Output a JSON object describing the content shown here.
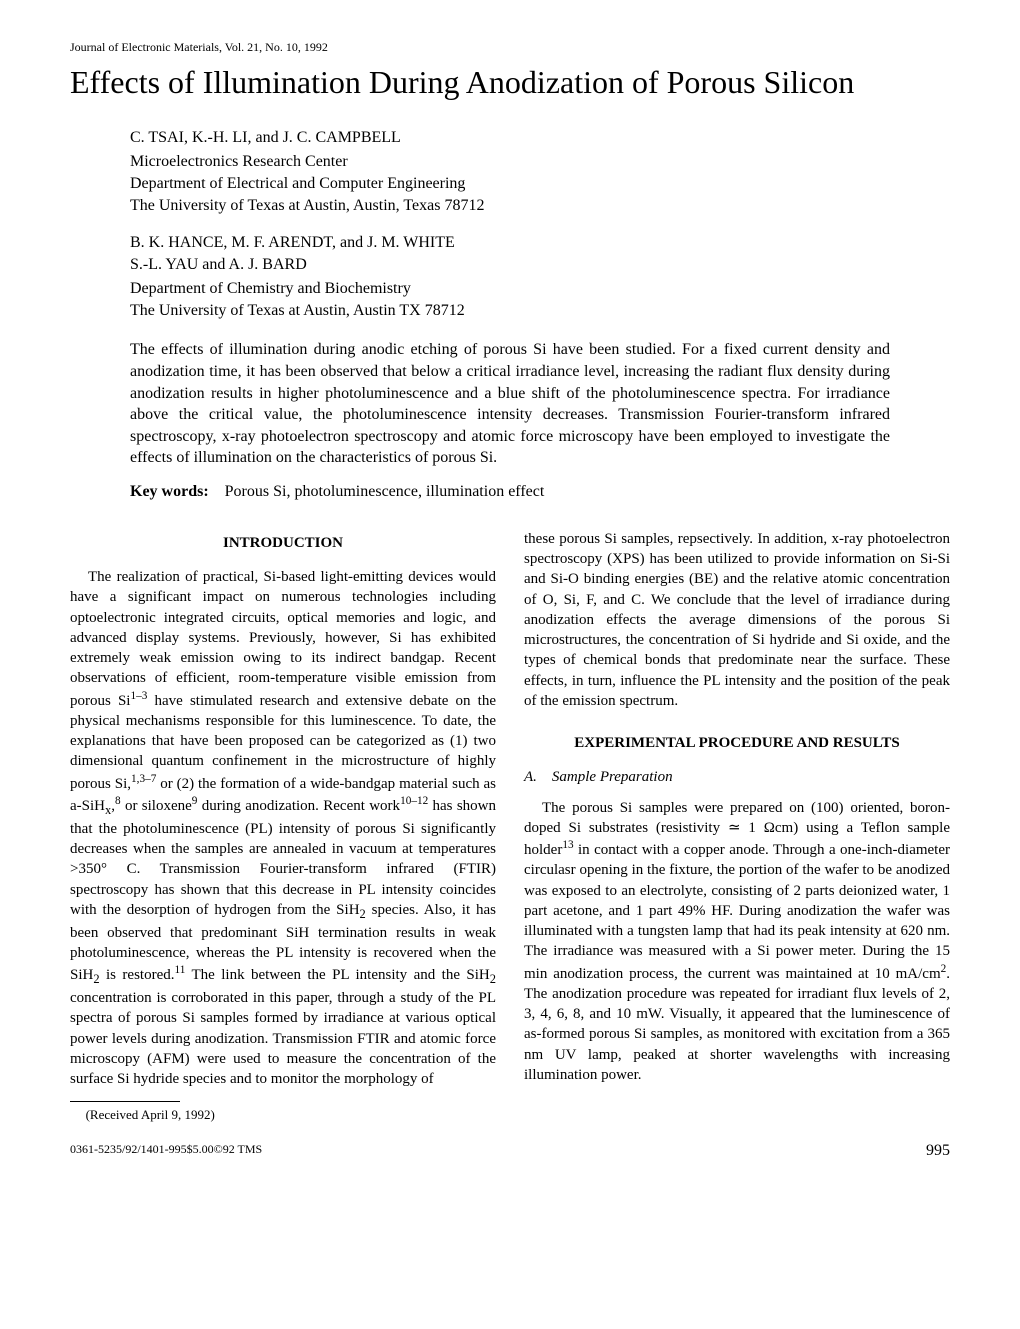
{
  "journal_header": "Journal of Electronic Materials, Vol. 21, No. 10, 1992",
  "title": "Effects of Illumination During Anodization of Porous Silicon",
  "author_group_1": {
    "authors": "C. TSAI, K.-H. LI, and J. C. CAMPBELL",
    "affiliation": "Microelectronics Research Center\nDepartment of Electrical and Computer Engineering\nThe University of Texas at Austin, Austin, Texas 78712"
  },
  "author_group_2": {
    "authors_line1": "B. K. HANCE, M. F. ARENDT, and J. M. WHITE",
    "authors_line2": "S.-L. YAU and A. J. BARD",
    "affiliation": "Department of Chemistry and Biochemistry\nThe University of Texas at Austin, Austin TX 78712"
  },
  "abstract": "The effects of illumination during anodic etching of porous Si have been studied. For a fixed current density and anodization time, it has been observed that below a critical irradiance level, increasing the radiant flux density during anodization results in higher photoluminescence and a blue shift of the photoluminescence spectra. For irradiance above the critical value, the photoluminescence intensity decreases. Transmission Fourier-transform infrared spectroscopy, x-ray photoelectron spectroscopy and atomic force microscopy have been employed to investigate the effects of illumination on the characteristics of porous Si.",
  "keywords_label": "Key words:",
  "keywords": "Porous Si, photoluminescence, illumination effect",
  "sections": {
    "introduction": {
      "heading": "INTRODUCTION",
      "para1_html": "The realization of practical, Si-based light-emitting devices would have a significant impact on numerous technologies including optoelectronic integrated circuits, optical memories and logic, and advanced display systems. Previously, however, Si has exhibited extremely weak emission owing to its indirect bandgap. Recent observations of efficient, room-temperature visible emission from porous Si<sup>1–3</sup> have stimulated research and extensive debate on the physical mechanisms responsible for this luminescence. To date, the explanations that have been proposed can be categorized as (1) two dimensional quantum confinement in the microstructure of highly porous Si,<sup>1,3–7</sup> or (2) the formation of a wide-bandgap material such as a-SiH<sub>x</sub>,<sup>8</sup> or siloxene<sup>9</sup> during anodization. Recent work<sup>10–12</sup> has shown that the photoluminescence (PL) intensity of porous Si significantly decreases when the samples are annealed in vacuum at temperatures >350° C. Transmission Fourier-transform infrared (FTIR) spectroscopy has shown that this decrease in PL intensity coincides with the desorption of hydrogen from the SiH<sub>2</sub> species. Also, it has been observed that predominant SiH termination results in weak photoluminescence, whereas the PL intensity is recovered when the SiH<sub>2</sub> is restored.<sup>11</sup> The link between the PL intensity and the SiH<sub>2</sub> concentration is corroborated in this paper, through a study of the PL spectra of porous Si samples formed by irradiance at various optical power levels during anodization. Transmission FTIR and atomic force microscopy (AFM) were used to measure the concentration of the surface Si hydride species and to monitor the morphology of",
      "para1_cont": "these porous Si samples, repsectively. In addition, x-ray photoelectron spectroscopy (XPS) has been utilized to provide information on Si-Si and Si-O binding energies (BE) and the relative atomic concentration of O, Si, F, and C. We conclude that the level of irradiance during anodization effects the average dimensions of the porous Si microstructures, the concentration of Si hydride and Si oxide, and the types of chemical bonds that predominate near the surface. These effects, in turn, influence the PL intensity and the position of the peak of the emission spectrum."
    },
    "experimental": {
      "heading": "EXPERIMENTAL PROCEDURE AND RESULTS",
      "subsection_a": "A. Sample Preparation",
      "para_a_html": "The porous Si samples were prepared on (100) oriented, boron-doped Si substrates (resistivity ≃ 1 Ωcm) using a Teflon sample holder<sup>13</sup> in contact with a copper anode. Through a one-inch-diameter circulasr opening in the fixture, the portion of the wafer to be anodized was exposed to an electrolyte, consisting of 2 parts deionized water, 1 part acetone, and 1 part 49% HF. During anodization the wafer was illuminated with a tungsten lamp that had its peak intensity at 620 nm. The irradiance was measured with a Si power meter. During the 15 min anodization process, the current was maintained at 10 mA/cm<sup>2</sup>. The anodization procedure was repeated for irradiant flux levels of 2, 3, 4, 6, 8, and 10 mW. Visually, it appeared that the luminescence of as-formed porous Si samples, as monitored with excitation from a 365 nm UV lamp, peaked at shorter wavelengths with increasing illumination power."
    }
  },
  "received": "(Received April 9, 1992)",
  "footer_code": "0361-5235/92/1401-995$5.00©92 TMS",
  "page_number": "995"
}
